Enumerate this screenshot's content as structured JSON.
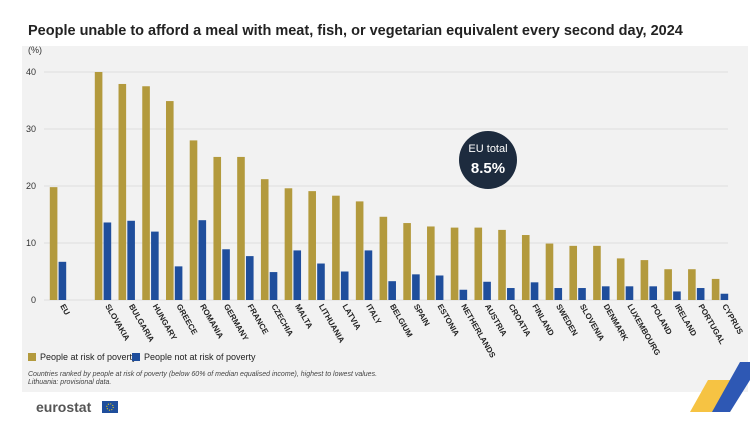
{
  "colors": {
    "poverty": "#b39a3d",
    "not_poverty": "#1f4e9c",
    "bubble": "#1d2b3e",
    "grid": "#d9d9d9",
    "panel": "#f2f2f2",
    "accent_yellow": "#f6c343",
    "accent_blue": "#2e58b4"
  },
  "chart_data": {
    "type": "bar",
    "title": "People unable to afford a meal with meat, fish, or vegetarian equivalent every second day, 2024",
    "unit": "(%)",
    "ylim": [
      0,
      40
    ],
    "yticks": [
      "0",
      "10",
      "20",
      "30",
      "40"
    ],
    "grid": true,
    "legend_position": "bottom-left",
    "categories": [
      "EU",
      "SLOVAKIA",
      "BULGARIA",
      "HUNGARY",
      "GREECE",
      "ROMANIA",
      "GERMANY",
      "FRANCE",
      "CZECHIA",
      "MALTA",
      "LITHUANIA",
      "LATVIA",
      "ITALY",
      "BELGIUM",
      "SPAIN",
      "ESTONIA",
      "NETHERLANDS",
      "AUSTRIA",
      "CROATIA",
      "FINLAND",
      "SWEDEN",
      "SLOVENIA",
      "DENMARK",
      "LUXEMBOURG",
      "POLAND",
      "IRELAND",
      "PORTUGAL",
      "CYPRUS"
    ],
    "series": [
      {
        "name": "People at risk of poverty",
        "color": "#b39a3d",
        "values": [
          19.8,
          40.0,
          37.9,
          37.5,
          34.9,
          28.0,
          25.1,
          25.1,
          21.2,
          19.6,
          19.1,
          18.3,
          17.3,
          14.6,
          13.5,
          12.9,
          12.7,
          12.7,
          12.3,
          11.4,
          9.9,
          9.5,
          9.5,
          7.3,
          7.0,
          5.4,
          5.4,
          3.7
        ]
      },
      {
        "name": "People not at risk of poverty",
        "color": "#1f4e9c",
        "values": [
          6.7,
          13.6,
          13.9,
          12.0,
          5.9,
          14.0,
          8.9,
          7.7,
          4.9,
          8.7,
          6.4,
          5.0,
          8.7,
          3.3,
          4.5,
          4.3,
          1.8,
          3.2,
          2.1,
          3.1,
          2.1,
          2.1,
          2.4,
          2.4,
          2.4,
          1.5,
          2.1,
          1.1
        ]
      }
    ],
    "annotation": {
      "label": "EU total",
      "value": "8.5%"
    }
  },
  "footnote": {
    "line1": "Countries ranked by people at risk of poverty (below 60% of median equalised income), highest to lowest values.",
    "line2": "Lithuania: provisional data."
  },
  "logo": {
    "text": "eurostat",
    "icon": "eu-flag-icon"
  }
}
